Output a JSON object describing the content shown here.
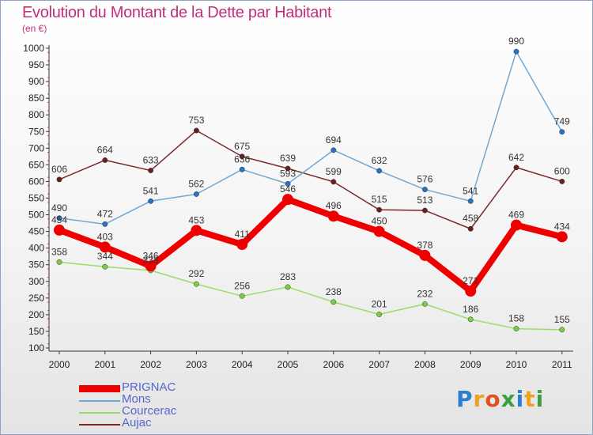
{
  "chart_data": {
    "type": "line",
    "title": "Evolution du Montant de la Dette par Habitant",
    "subtitle": "(en €)",
    "x": [
      "2000",
      "2001",
      "2002",
      "2003",
      "2004",
      "2005",
      "2006",
      "2007",
      "2008",
      "2009",
      "2010",
      "2011"
    ],
    "ylim": [
      100,
      1000
    ],
    "yticks": [
      100,
      150,
      200,
      250,
      300,
      350,
      400,
      450,
      500,
      550,
      600,
      650,
      700,
      750,
      800,
      850,
      900,
      950,
      1000
    ],
    "grid": false,
    "legend_placement": "bottom-left",
    "series": [
      {
        "name": "PRIGNAC",
        "color": "#ee0000",
        "values": [
          454,
          403,
          346,
          453,
          411,
          546,
          496,
          450,
          378,
          271,
          469,
          434
        ]
      },
      {
        "name": "Mons",
        "color": "#6fa8d4",
        "values": [
          490,
          472,
          541,
          562,
          636,
          593,
          694,
          632,
          576,
          541,
          990,
          749
        ]
      },
      {
        "name": "Courcerac",
        "color": "#99dd66",
        "values": [
          358,
          344,
          333,
          292,
          256,
          283,
          238,
          201,
          232,
          186,
          158,
          155
        ]
      },
      {
        "name": "Aujac",
        "color": "#7a2a2a",
        "values": [
          606,
          664,
          633,
          753,
          675,
          639,
          599,
          515,
          513,
          458,
          642,
          600
        ]
      }
    ]
  },
  "logo": {
    "text": "Proxiti",
    "letters": [
      "P",
      "r",
      "o",
      "x",
      "i",
      "t",
      "i"
    ],
    "colors": [
      "#2a7fd0",
      "#f0a020",
      "#e05020",
      "#3aa040",
      "#2a7fd0",
      "#f0a020",
      "#3aa040"
    ]
  }
}
